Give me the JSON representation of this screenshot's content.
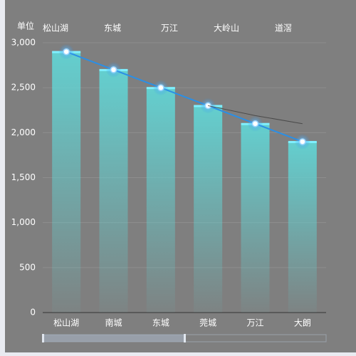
{
  "chart_data": {
    "type": "bar",
    "y_label": "单位",
    "x2_categories": [
      "松山湖",
      "东城",
      "万江",
      "大岭山",
      "道滘"
    ],
    "categories": [
      "松山湖",
      "南城",
      "东城",
      "莞城",
      "万江",
      "大朗"
    ],
    "series": [
      {
        "type": "bar",
        "color": "#62d3d3",
        "values": [
          2900,
          2700,
          2500,
          2300,
          2100,
          1900
        ]
      },
      {
        "type": "line",
        "color": "#2a8fe6",
        "values": [
          2900,
          2700,
          2500,
          2300,
          2100,
          1900
        ]
      },
      {
        "type": "line",
        "color": "#4a4a4a",
        "values": [
          null,
          null,
          null,
          2300,
          2190,
          2100
        ]
      }
    ],
    "ylim": [
      0,
      3000
    ],
    "yticks": [
      0,
      500,
      {
        "value": 1000,
        "label": "1,000"
      },
      {
        "value": 1500,
        "label": "1,500"
      },
      {
        "value": 2000,
        "label": "2,000"
      },
      {
        "value": 2500,
        "label": "2,500"
      },
      {
        "value": 3000,
        "label": "3,000"
      }
    ],
    "grid": true
  }
}
